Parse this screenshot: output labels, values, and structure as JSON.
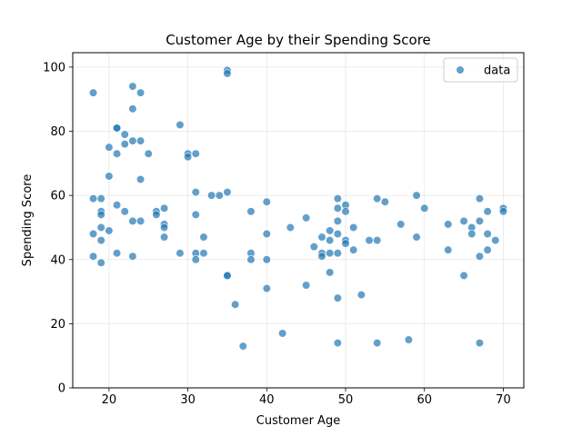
{
  "chart_data": {
    "type": "scatter",
    "title": "Customer Age by their Spending Score",
    "xlabel": "Customer Age",
    "ylabel": "Spending Score",
    "xlim": [
      15.4,
      72.6
    ],
    "ylim": [
      0,
      104.5
    ],
    "xticks": [
      20,
      30,
      40,
      50,
      60,
      70
    ],
    "yticks": [
      0,
      20,
      40,
      60,
      80,
      100
    ],
    "grid": true,
    "legend": "top-right",
    "series": [
      {
        "name": "data",
        "color": "#1f77b4",
        "points": [
          [
            18,
            92
          ],
          [
            18,
            59
          ],
          [
            18,
            48
          ],
          [
            18,
            41
          ],
          [
            19,
            59
          ],
          [
            19,
            55
          ],
          [
            19,
            54
          ],
          [
            19,
            50
          ],
          [
            19,
            46
          ],
          [
            19,
            39
          ],
          [
            20,
            75
          ],
          [
            20,
            66
          ],
          [
            20,
            49
          ],
          [
            21,
            81
          ],
          [
            21,
            81
          ],
          [
            21,
            73
          ],
          [
            21,
            57
          ],
          [
            21,
            42
          ],
          [
            22,
            79
          ],
          [
            22,
            76
          ],
          [
            22,
            55
          ],
          [
            23,
            94
          ],
          [
            23,
            87
          ],
          [
            23,
            77
          ],
          [
            23,
            52
          ],
          [
            23,
            41
          ],
          [
            24,
            92
          ],
          [
            24,
            77
          ],
          [
            24,
            65
          ],
          [
            24,
            52
          ],
          [
            25,
            73
          ],
          [
            26,
            55
          ],
          [
            26,
            54
          ],
          [
            27,
            56
          ],
          [
            27,
            51
          ],
          [
            27,
            50
          ],
          [
            27,
            47
          ],
          [
            29,
            82
          ],
          [
            29,
            42
          ],
          [
            30,
            73
          ],
          [
            30,
            72
          ],
          [
            31,
            73
          ],
          [
            31,
            61
          ],
          [
            31,
            54
          ],
          [
            31,
            42
          ],
          [
            31,
            40
          ],
          [
            32,
            47
          ],
          [
            32,
            42
          ],
          [
            33,
            60
          ],
          [
            34,
            60
          ],
          [
            35,
            99
          ],
          [
            35,
            98
          ],
          [
            35,
            61
          ],
          [
            35,
            35
          ],
          [
            35,
            35
          ],
          [
            36,
            26
          ],
          [
            37,
            13
          ],
          [
            38,
            55
          ],
          [
            38,
            42
          ],
          [
            38,
            40
          ],
          [
            40,
            58
          ],
          [
            40,
            48
          ],
          [
            40,
            40
          ],
          [
            40,
            31
          ],
          [
            42,
            17
          ],
          [
            43,
            50
          ],
          [
            45,
            53
          ],
          [
            45,
            32
          ],
          [
            46,
            44
          ],
          [
            47,
            47
          ],
          [
            47,
            42
          ],
          [
            47,
            41
          ],
          [
            48,
            49
          ],
          [
            48,
            46
          ],
          [
            48,
            42
          ],
          [
            48,
            36
          ],
          [
            49,
            59
          ],
          [
            49,
            56
          ],
          [
            49,
            52
          ],
          [
            49,
            48
          ],
          [
            49,
            42
          ],
          [
            49,
            28
          ],
          [
            49,
            14
          ],
          [
            50,
            57
          ],
          [
            50,
            55
          ],
          [
            50,
            46
          ],
          [
            50,
            45
          ],
          [
            51,
            50
          ],
          [
            51,
            43
          ],
          [
            52,
            29
          ],
          [
            53,
            46
          ],
          [
            54,
            59
          ],
          [
            54,
            46
          ],
          [
            54,
            14
          ],
          [
            55,
            58
          ],
          [
            57,
            51
          ],
          [
            58,
            15
          ],
          [
            59,
            60
          ],
          [
            59,
            47
          ],
          [
            60,
            56
          ],
          [
            63,
            51
          ],
          [
            63,
            43
          ],
          [
            65,
            52
          ],
          [
            65,
            35
          ],
          [
            66,
            50
          ],
          [
            66,
            48
          ],
          [
            67,
            59
          ],
          [
            67,
            52
          ],
          [
            67,
            41
          ],
          [
            67,
            14
          ],
          [
            68,
            55
          ],
          [
            68,
            48
          ],
          [
            68,
            43
          ],
          [
            69,
            46
          ],
          [
            70,
            56
          ],
          [
            70,
            55
          ]
        ]
      }
    ]
  }
}
